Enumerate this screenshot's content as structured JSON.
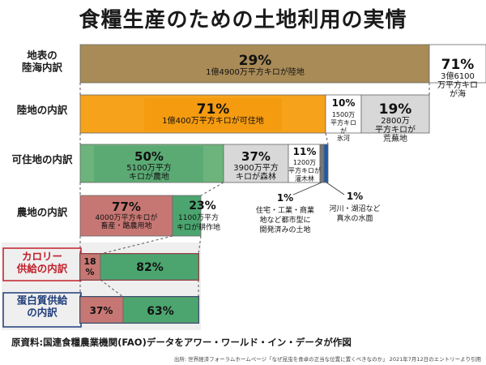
{
  "title": "食糧生産のための土地利用の実情",
  "chart_data": {
    "type": "bar",
    "rows": [
      {
        "label": "地表の\n陸海内訳",
        "segments": [
          {
            "pct": "29%",
            "value": 29,
            "text": [
              "1億4900万平方キロが陸地"
            ],
            "color": "#a98b57"
          },
          {
            "pct": "71%",
            "value": 71,
            "text": [
              "3億6100",
              "万平方キロ",
              "が海"
            ],
            "color": "#ffffff"
          }
        ]
      },
      {
        "label": "陸地の内訳",
        "segments": [
          {
            "pct": "71%",
            "value": 71,
            "text": [
              "1億400万平方キロが可住地"
            ],
            "color": "#f6a21a"
          },
          {
            "pct": "10%",
            "value": 10,
            "text": [
              "1500万",
              "平方キロ",
              "が",
              "氷河"
            ],
            "color": "#ffffff"
          },
          {
            "pct": "19%",
            "value": 19,
            "text": [
              "2800万",
              "平方キロが",
              "荒蕪地"
            ],
            "color": "#d8d8d8"
          }
        ]
      },
      {
        "label": "可住地の内訳",
        "segments": [
          {
            "pct": "50%",
            "value": 50,
            "text": [
              "5100万平方",
              "キロが農地"
            ],
            "color": "#6cb47c"
          },
          {
            "pct": "37%",
            "value": 37,
            "text": [
              "3900万平方",
              "キロが森林"
            ],
            "color": "#d8d8d8"
          },
          {
            "pct": "11%",
            "value": 11,
            "text": [
              "1200万",
              "平方キロが",
              "灌木林"
            ],
            "color": "#ffffff"
          },
          {
            "pct": "1%",
            "value": 1,
            "text": [
              "住宅・工業・商業",
              "地など都市型に",
              "開発済みの土地"
            ],
            "color": "#777777"
          },
          {
            "pct": "1%",
            "value": 1,
            "text": [
              "河川・湖沼など",
              "真水の水面"
            ],
            "color": "#1e5aa8"
          }
        ]
      },
      {
        "label": "農地の内訳",
        "segments": [
          {
            "pct": "77%",
            "value": 77,
            "text": [
              "4000万平方キロが",
              "畜産・酪農用地"
            ],
            "color": "#c77773"
          },
          {
            "pct": "23%",
            "value": 23,
            "text": [
              "1100万平方",
              "キロが耕作地"
            ],
            "color": "#4ca56f"
          }
        ]
      },
      {
        "label": "カロリー\n供給の内訳",
        "segments": [
          {
            "pct": "18\n%",
            "value": 18,
            "text": [],
            "color": "#c77773"
          },
          {
            "pct": "82%",
            "value": 82,
            "text": [],
            "color": "#4ca56f"
          }
        ]
      },
      {
        "label": "蛋白質供給\nの内訳",
        "segments": [
          {
            "pct": "37%",
            "value": 37,
            "text": [],
            "color": "#c77773"
          },
          {
            "pct": "63%",
            "value": 63,
            "text": [],
            "color": "#4ca56f"
          }
        ]
      }
    ]
  },
  "source_main": "原資料:国連食糧農業機関(FAO)データをアワー・ワールド・イン・データが作図",
  "source_note": "出所: 世界経済フォーラムホームページ「なぜ昆虫を食卓の正当な位置に置くべきなのか」 2021年7月12日のエントリーより引用"
}
